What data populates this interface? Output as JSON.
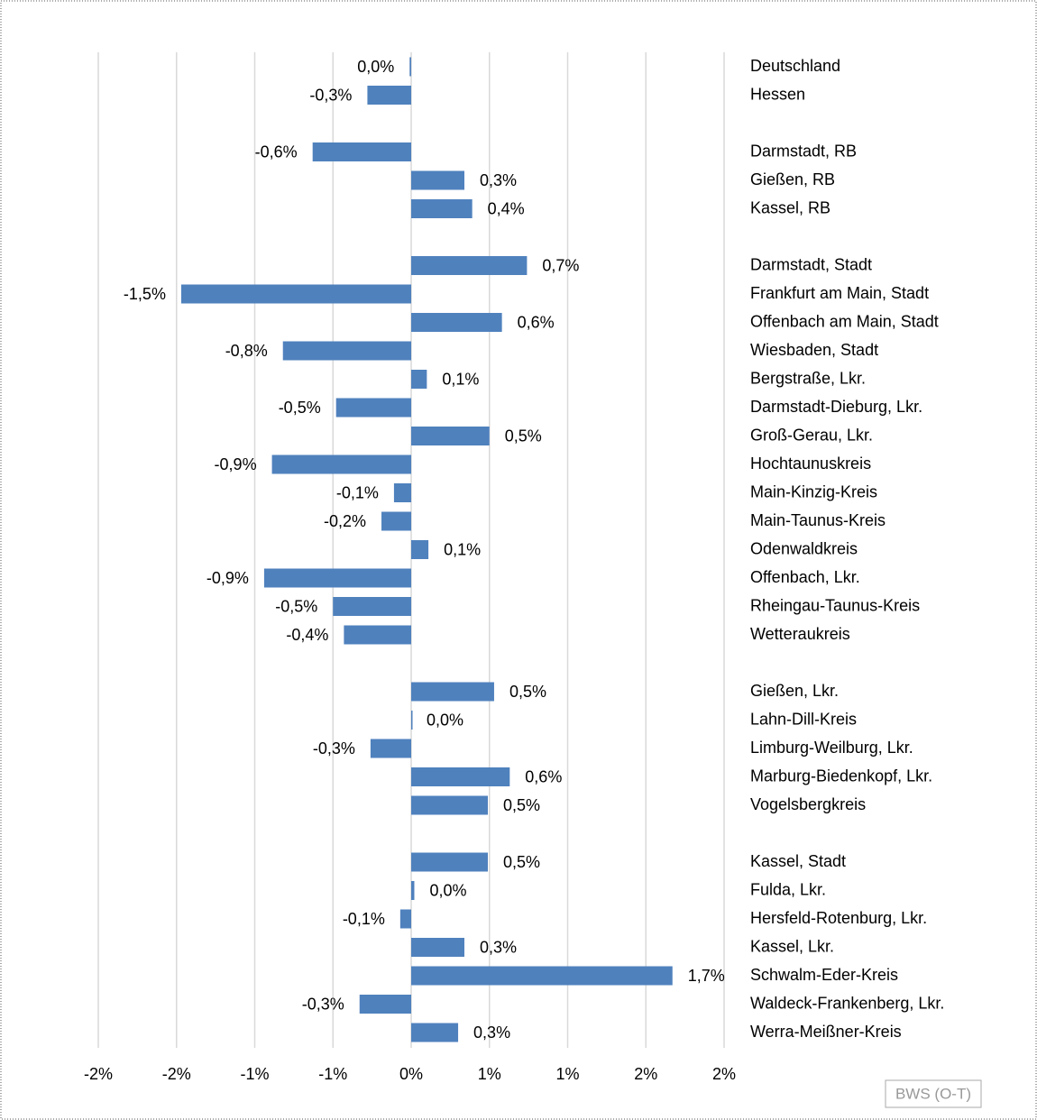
{
  "chart_data": {
    "type": "bar",
    "orientation": "horizontal",
    "color": "#4f81bd",
    "grid": true,
    "categories": [
      "Deutschland",
      "Hessen",
      null,
      "Darmstadt, RB",
      "Gießen, RB",
      "Kassel, RB",
      null,
      "Darmstadt, Stadt",
      "Frankfurt am Main, Stadt",
      "Offenbach am Main, Stadt",
      "Wiesbaden, Stadt",
      "Bergstraße, Lkr.",
      "Darmstadt-Dieburg, Lkr.",
      "Groß-Gerau, Lkr.",
      "Hochtaunuskreis",
      "Main-Kinzig-Kreis",
      "Main-Taunus-Kreis",
      "Odenwaldkreis",
      "Offenbach, Lkr.",
      "Rheingau-Taunus-Kreis",
      "Wetteraukreis",
      null,
      "Gießen, Lkr.",
      "Lahn-Dill-Kreis",
      "Limburg-Weilburg, Lkr.",
      "Marburg-Biedenkopf, Lkr.",
      "Vogelsbergkreis",
      null,
      "Kassel, Stadt",
      "Fulda, Lkr.",
      "Hersfeld-Rotenburg, Lkr.",
      "Kassel, Lkr.",
      "Schwalm-Eder-Kreis",
      "Waldeck-Frankenberg, Lkr.",
      "Werra-Meißner-Kreis"
    ],
    "values": [
      -0.01,
      -0.28,
      null,
      -0.63,
      0.34,
      0.39,
      null,
      0.74,
      -1.47,
      0.58,
      -0.82,
      0.1,
      -0.48,
      0.5,
      -0.89,
      -0.11,
      -0.19,
      0.11,
      -0.94,
      -0.5,
      -0.43,
      null,
      0.53,
      0,
      -0.26,
      0.63,
      0.49,
      null,
      0.49,
      0.02,
      -0.07,
      0.34,
      1.67,
      -0.33,
      0.3
    ],
    "value_labels": [
      "0,0%",
      "-0,3%",
      null,
      "-0,6%",
      "0,3%",
      "0,4%",
      null,
      "0,7%",
      "-1,5%",
      "0,6%",
      "-0,8%",
      "0,1%",
      "-0,5%",
      "0,5%",
      "-0,9%",
      "-0,1%",
      "-0,2%",
      "0,1%",
      "-0,9%",
      "-0,5%",
      "-0,4%",
      null,
      "0,5%",
      "0,0%",
      "-0,3%",
      "0,6%",
      "0,5%",
      null,
      "0,5%",
      "0,0%",
      "-0,1%",
      "0,3%",
      "1,7%",
      "-0,3%",
      "0,3%"
    ],
    "xlim": [
      -2,
      2
    ],
    "xticks": [
      {
        "value": -2,
        "label": "-2%"
      },
      {
        "value": -1.5,
        "label": "-2%"
      },
      {
        "value": -1,
        "label": "-1%"
      },
      {
        "value": -0.5,
        "label": "-1%"
      },
      {
        "value": 0,
        "label": "0%"
      },
      {
        "value": 0.5,
        "label": "1%"
      },
      {
        "value": 1,
        "label": "1%"
      },
      {
        "value": 1.5,
        "label": "2%"
      },
      {
        "value": 2,
        "label": "2%"
      }
    ],
    "source": "BWS (O-T)"
  }
}
